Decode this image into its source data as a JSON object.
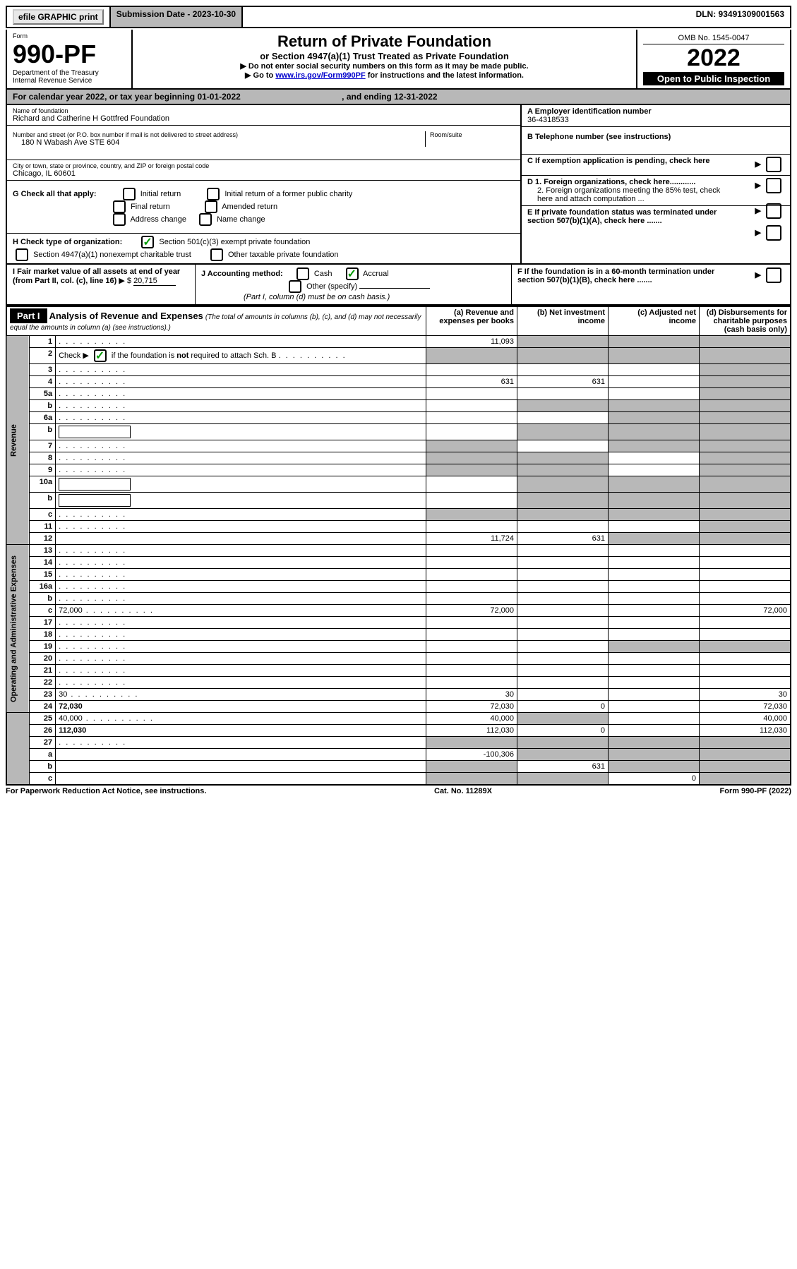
{
  "topbar": {
    "efile": "efile GRAPHIC print",
    "submission_label": "Submission Date - 2023-10-30",
    "dln_label": "DLN: 93491309001563"
  },
  "header": {
    "form_label": "Form",
    "form_no": "990-PF",
    "dept1": "Department of the Treasury",
    "dept2": "Internal Revenue Service",
    "title": "Return of Private Foundation",
    "subtitle": "or Section 4947(a)(1) Trust Treated as Private Foundation",
    "note1": "▶ Do not enter social security numbers on this form as it may be made public.",
    "note2_pre": "▶ Go to ",
    "note2_link": "www.irs.gov/Form990PF",
    "note2_post": " for instructions and the latest information.",
    "omb": "OMB No. 1545-0047",
    "year": "2022",
    "open": "Open to Public Inspection"
  },
  "cal_year": {
    "text_pre": "For calendar year 2022, or tax year beginning 01-01-2022",
    "text_mid": ", and ending 12-31-2022"
  },
  "ident": {
    "name_label": "Name of foundation",
    "name": "Richard and Catherine H Gottfred Foundation",
    "addr_label": "Number and street (or P.O. box number if mail is not delivered to street address)",
    "addr": "180 N Wabash Ave STE 604",
    "room_label": "Room/suite",
    "city_label": "City or town, state or province, country, and ZIP or foreign postal code",
    "city": "Chicago, IL  60601",
    "ein_label": "A Employer identification number",
    "ein": "36-4318533",
    "phone_label": "B Telephone number (see instructions)",
    "c_label": "C If exemption application is pending, check here",
    "d1_label": "D 1. Foreign organizations, check here............",
    "d2_label": "2. Foreign organizations meeting the 85% test, check here and attach computation ...",
    "e_label": "E  If private foundation status was terminated under section 507(b)(1)(A), check here .......",
    "f_label": "F  If the foundation is in a 60-month termination under section 507(b)(1)(B), check here ......."
  },
  "checks": {
    "g_label": "G Check all that apply:",
    "g_initial": "Initial return",
    "g_final": "Final return",
    "g_address": "Address change",
    "g_initial_former": "Initial return of a former public charity",
    "g_amended": "Amended return",
    "g_name": "Name change",
    "h_label": "H Check type of organization:",
    "h_501c3": "Section 501(c)(3) exempt private foundation",
    "h_4947": "Section 4947(a)(1) nonexempt charitable trust",
    "h_other": "Other taxable private foundation",
    "i_label": "I Fair market value of all assets at end of year (from Part II, col. (c), line 16)",
    "i_value": "20,715",
    "j_label": "J Accounting method:",
    "j_cash": "Cash",
    "j_accrual": "Accrual",
    "j_other": "Other (specify)",
    "j_note": "(Part I, column (d) must be on cash basis.)"
  },
  "part1": {
    "label": "Part I",
    "title": "Analysis of Revenue and Expenses",
    "title_note": "(The total of amounts in columns (b), (c), and (d) may not necessarily equal the amounts in column (a) (see instructions).)",
    "col_a": "(a)   Revenue and expenses per books",
    "col_b": "(b)   Net investment income",
    "col_c": "(c)   Adjusted net income",
    "col_d": "(d)   Disbursements for charitable purposes (cash basis only)",
    "revenue_label": "Revenue",
    "expenses_label": "Operating and Administrative Expenses"
  },
  "rows": [
    {
      "n": "1",
      "d": "",
      "a": "11,093",
      "b": "",
      "c": ""
    },
    {
      "n": "2",
      "d": "",
      "a": "",
      "b": "",
      "c": ""
    },
    {
      "n": "3",
      "d": "",
      "a": "",
      "b": "",
      "c": ""
    },
    {
      "n": "4",
      "d": "",
      "a": "631",
      "b": "631",
      "c": ""
    },
    {
      "n": "5a",
      "d": "",
      "a": "",
      "b": "",
      "c": ""
    },
    {
      "n": "b",
      "d": "",
      "a": "",
      "b": "",
      "c": ""
    },
    {
      "n": "6a",
      "d": "",
      "a": "",
      "b": "",
      "c": ""
    },
    {
      "n": "b",
      "d": "",
      "a": "",
      "b": "",
      "c": ""
    },
    {
      "n": "7",
      "d": "",
      "a": "",
      "b": "",
      "c": ""
    },
    {
      "n": "8",
      "d": "",
      "a": "",
      "b": "",
      "c": ""
    },
    {
      "n": "9",
      "d": "",
      "a": "",
      "b": "",
      "c": ""
    },
    {
      "n": "10a",
      "d": "",
      "a": "",
      "b": "",
      "c": ""
    },
    {
      "n": "b",
      "d": "",
      "a": "",
      "b": "",
      "c": ""
    },
    {
      "n": "c",
      "d": "",
      "a": "",
      "b": "",
      "c": ""
    },
    {
      "n": "11",
      "d": "",
      "a": "",
      "b": "",
      "c": ""
    },
    {
      "n": "12",
      "d": "",
      "a": "11,724",
      "b": "631",
      "c": "",
      "bold": true
    },
    {
      "n": "13",
      "d": "",
      "a": "",
      "b": "",
      "c": ""
    },
    {
      "n": "14",
      "d": "",
      "a": "",
      "b": "",
      "c": ""
    },
    {
      "n": "15",
      "d": "",
      "a": "",
      "b": "",
      "c": ""
    },
    {
      "n": "16a",
      "d": "",
      "a": "",
      "b": "",
      "c": ""
    },
    {
      "n": "b",
      "d": "",
      "a": "",
      "b": "",
      "c": ""
    },
    {
      "n": "c",
      "d": "72,000",
      "a": "72,000",
      "b": "",
      "c": ""
    },
    {
      "n": "17",
      "d": "",
      "a": "",
      "b": "",
      "c": ""
    },
    {
      "n": "18",
      "d": "",
      "a": "",
      "b": "",
      "c": ""
    },
    {
      "n": "19",
      "d": "",
      "a": "",
      "b": "",
      "c": ""
    },
    {
      "n": "20",
      "d": "",
      "a": "",
      "b": "",
      "c": ""
    },
    {
      "n": "21",
      "d": "",
      "a": "",
      "b": "",
      "c": ""
    },
    {
      "n": "22",
      "d": "",
      "a": "",
      "b": "",
      "c": ""
    },
    {
      "n": "23",
      "d": "30",
      "a": "30",
      "b": "",
      "c": ""
    },
    {
      "n": "24",
      "d": "72,030",
      "a": "72,030",
      "b": "0",
      "c": "",
      "bold": true
    },
    {
      "n": "25",
      "d": "40,000",
      "a": "40,000",
      "b": "",
      "c": ""
    },
    {
      "n": "26",
      "d": "112,030",
      "a": "112,030",
      "b": "0",
      "c": "",
      "bold": true
    },
    {
      "n": "27",
      "d": "",
      "a": "",
      "b": "",
      "c": ""
    },
    {
      "n": "a",
      "d": "",
      "a": "-100,306",
      "b": "",
      "c": "",
      "bold": true
    },
    {
      "n": "b",
      "d": "",
      "a": "",
      "b": "631",
      "c": "",
      "bold": true
    },
    {
      "n": "c",
      "d": "",
      "a": "",
      "b": "",
      "c": "0",
      "bold": true
    }
  ],
  "shading": {
    "col_b_shaded": [
      "1",
      "2",
      "5a",
      "b",
      "6a",
      "10a",
      "11"
    ],
    "col_c_shaded": [
      "1",
      "2",
      "b",
      "7",
      "8",
      "10a",
      "19"
    ],
    "col_d_shaded": [
      "1",
      "2",
      "3",
      "4",
      "5a",
      "b",
      "6a",
      "7",
      "8",
      "9",
      "10a",
      "11",
      "12",
      "19",
      "27"
    ]
  },
  "footer": {
    "left": "For Paperwork Reduction Act Notice, see instructions.",
    "mid": "Cat. No. 11289X",
    "right": "Form 990-PF (2022)"
  }
}
